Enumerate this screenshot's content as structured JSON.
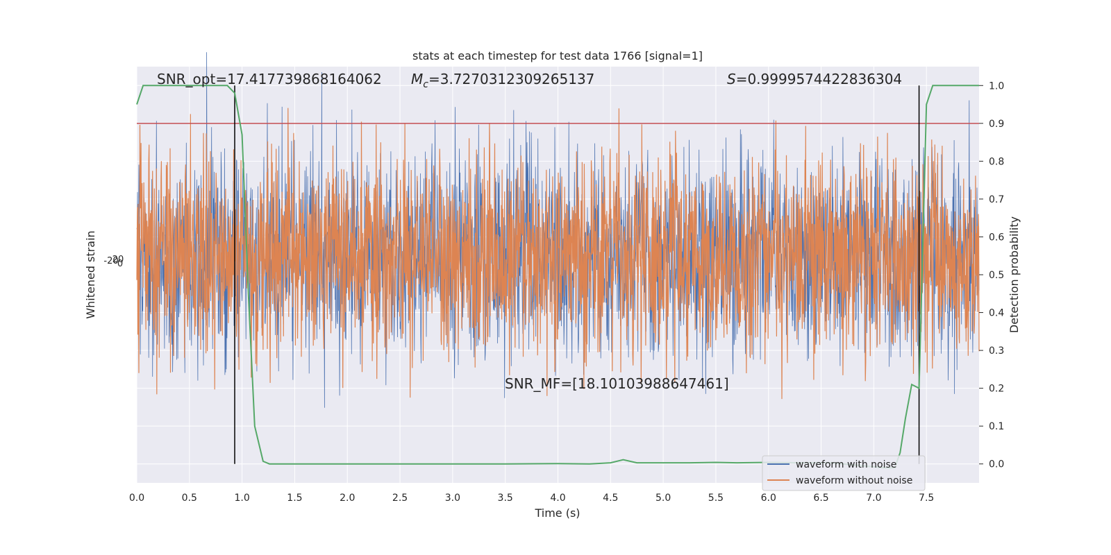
{
  "chart_data": {
    "type": "line",
    "title": "stats at each timestep for test data 1766 [signal=1]",
    "xlabel": "Time (s)",
    "ylabel_left": "Whitened strain",
    "ylabel_right": "Detection probability",
    "xlim": [
      0.0,
      8.0
    ],
    "ylim_right": [
      -0.05,
      1.05
    ],
    "x_ticks": [
      0.0,
      0.5,
      1.0,
      1.5,
      2.0,
      2.5,
      3.0,
      3.5,
      4.0,
      4.5,
      5.0,
      5.5,
      6.0,
      6.5,
      7.0,
      7.5
    ],
    "x_tick_labels": [
      "0.0",
      "0.5",
      "1.0",
      "1.5",
      "2.0",
      "2.5",
      "3.0",
      "3.5",
      "4.0",
      "4.5",
      "5.0",
      "5.5",
      "6.0",
      "6.5",
      "7.0",
      "7.5"
    ],
    "y_right_ticks": [
      0.0,
      0.1,
      0.2,
      0.3,
      0.4,
      0.5,
      0.6,
      0.7,
      0.8,
      0.9,
      1.0
    ],
    "y_right_tick_labels": [
      "0.0",
      "0.1",
      "0.2",
      "0.3",
      "0.4",
      "0.5",
      "0.6",
      "0.7",
      "0.8",
      "0.9",
      "1.0"
    ],
    "y_left_tick_labels": [
      "-20",
      "0",
      "20"
    ],
    "grid": true,
    "legend_position": "lower-right",
    "colors": {
      "background": "#eaeaf2",
      "grid": "#ffffff",
      "waveform_with_noise": "#4c72b0",
      "waveform_without_noise": "#dd8452",
      "detection_probability": "#55a868",
      "threshold": "#c44e52",
      "markers": "#000000"
    },
    "series": [
      {
        "name": "waveform with noise",
        "kind": "noise-trace",
        "amplitude_band": [
          0.25,
          0.85
        ]
      },
      {
        "name": "waveform without noise",
        "kind": "noise-trace",
        "amplitude_band": [
          0.25,
          0.85
        ]
      },
      {
        "kind": "detection-probability",
        "x": [
          0.0,
          0.06,
          0.12,
          0.25,
          0.5,
          0.75,
          0.86,
          0.93,
          1.0,
          1.06,
          1.12,
          1.2,
          1.26,
          1.5,
          2.0,
          2.5,
          3.0,
          3.5,
          4.0,
          4.3,
          4.5,
          4.62,
          4.75,
          5.0,
          5.25,
          5.5,
          5.7,
          6.0,
          6.3,
          6.6,
          6.9,
          7.1,
          7.2,
          7.25,
          7.3,
          7.36,
          7.43,
          7.5,
          7.56,
          7.62,
          7.7,
          8.0
        ],
        "values": [
          0.95,
          1.0,
          1.0,
          1.0,
          1.0,
          1.0,
          1.0,
          0.98,
          0.87,
          0.45,
          0.1,
          0.007,
          0.0,
          0.0,
          0.0,
          0.0,
          0.0,
          0.0,
          0.001,
          0.0,
          0.003,
          0.011,
          0.003,
          0.003,
          0.003,
          0.004,
          0.003,
          0.004,
          0.003,
          0.003,
          -0.005,
          -0.01,
          -0.01,
          0.03,
          0.12,
          0.21,
          0.2,
          0.95,
          1.0,
          1.0,
          1.0,
          1.0
        ]
      }
    ],
    "threshold_line": {
      "y": 0.9
    },
    "vertical_markers": [
      0.93,
      7.43
    ],
    "annotations": {
      "snr_opt": "SNR_opt=17.417739868164062",
      "mc_symbol": "M",
      "mc_subscript": "c",
      "mc_value": "=3.7270312309265137",
      "s_symbol": "S",
      "s_value": "=0.9999574422836304",
      "snr_mf": "SNR_MF=[18.10103988647461]"
    }
  }
}
